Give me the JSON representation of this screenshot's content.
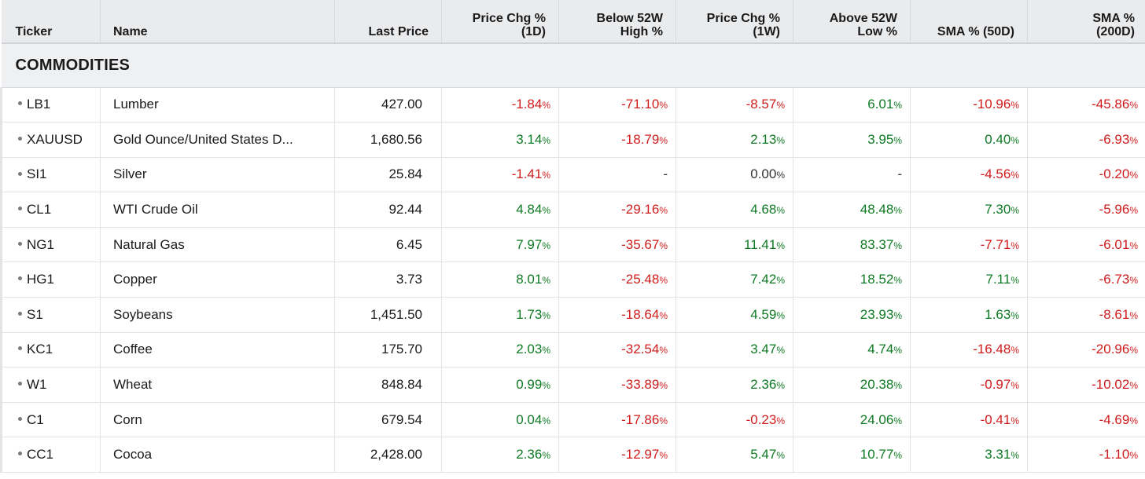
{
  "colors": {
    "positive": "#0e7a23",
    "negative": "#d01c1c",
    "neutral": "#333333",
    "header_bg": "#eaebed"
  },
  "columns": [
    {
      "lines": [
        "Ticker"
      ],
      "align": "left"
    },
    {
      "lines": [
        "Name"
      ],
      "align": "left"
    },
    {
      "lines": [
        "Last Price"
      ],
      "align": "right"
    },
    {
      "lines": [
        "Price Chg %",
        "(1D)"
      ],
      "align": "right"
    },
    {
      "lines": [
        "Below 52W",
        "High %"
      ],
      "align": "right"
    },
    {
      "lines": [
        "Price Chg %",
        "(1W)"
      ],
      "align": "right"
    },
    {
      "lines": [
        "Above 52W",
        "Low %"
      ],
      "align": "right"
    },
    {
      "lines": [
        "SMA % (50D)"
      ],
      "align": "right"
    },
    {
      "lines": [
        "SMA %",
        "(200D)"
      ],
      "align": "right"
    }
  ],
  "section_title": "COMMODITIES",
  "rows": [
    {
      "ticker": "LB1",
      "name": "Lumber",
      "price": "427.00",
      "vals": [
        "-1.84",
        "-71.10",
        "-8.57",
        "6.01",
        "-10.96",
        "-45.86"
      ]
    },
    {
      "ticker": "XAUUSD",
      "name": "Gold Ounce/United States D...",
      "price": "1,680.56",
      "vals": [
        "3.14",
        "-18.79",
        "2.13",
        "3.95",
        "0.40",
        "-6.93"
      ]
    },
    {
      "ticker": "SI1",
      "name": "Silver",
      "price": "25.84",
      "vals": [
        "-1.41",
        "-",
        "0.00",
        "-",
        "-4.56",
        "-0.20"
      ]
    },
    {
      "ticker": "CL1",
      "name": "WTI Crude Oil",
      "price": "92.44",
      "vals": [
        "4.84",
        "-29.16",
        "4.68",
        "48.48",
        "7.30",
        "-5.96"
      ]
    },
    {
      "ticker": "NG1",
      "name": "Natural Gas",
      "price": "6.45",
      "vals": [
        "7.97",
        "-35.67",
        "11.41",
        "83.37",
        "-7.71",
        "-6.01"
      ]
    },
    {
      "ticker": "HG1",
      "name": "Copper",
      "price": "3.73",
      "vals": [
        "8.01",
        "-25.48",
        "7.42",
        "18.52",
        "7.11",
        "-6.73"
      ]
    },
    {
      "ticker": "S1",
      "name": "Soybeans",
      "price": "1,451.50",
      "vals": [
        "1.73",
        "-18.64",
        "4.59",
        "23.93",
        "1.63",
        "-8.61"
      ]
    },
    {
      "ticker": "KC1",
      "name": "Coffee",
      "price": "175.70",
      "vals": [
        "2.03",
        "-32.54",
        "3.47",
        "4.74",
        "-16.48",
        "-20.96"
      ]
    },
    {
      "ticker": "W1",
      "name": "Wheat",
      "price": "848.84",
      "vals": [
        "0.99",
        "-33.89",
        "2.36",
        "20.38",
        "-0.97",
        "-10.02"
      ]
    },
    {
      "ticker": "C1",
      "name": "Corn",
      "price": "679.54",
      "vals": [
        "0.04",
        "-17.86",
        "-0.23",
        "24.06",
        "-0.41",
        "-4.69"
      ]
    },
    {
      "ticker": "CC1",
      "name": "Cocoa",
      "price": "2,428.00",
      "vals": [
        "2.36",
        "-12.97",
        "5.47",
        "10.77",
        "3.31",
        "-1.10"
      ]
    }
  ],
  "pct_suffix": "%"
}
